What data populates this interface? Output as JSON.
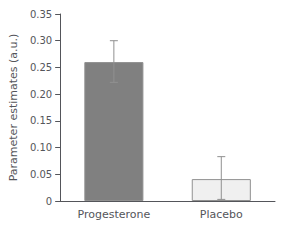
{
  "chart_data": {
    "type": "bar",
    "categories": [
      "Progesterone",
      "Placebo"
    ],
    "values": [
      0.26,
      0.041
    ],
    "error_upper": [
      0.04,
      0.042
    ],
    "error_lower": [
      0.038,
      0.038
    ],
    "colors": [
      "#808080",
      "#f0f0f0"
    ],
    "ylabel": "Parameter estimates (a.u.)",
    "ylim": [
      0,
      0.35
    ],
    "yticks": [
      0,
      0.05,
      {
        "value": 0.1,
        "label": "0.10"
      },
      0.15,
      {
        "value": 0.2,
        "label": "0.20"
      },
      0.25,
      {
        "value": 0.3,
        "label": "0.30"
      },
      0.35
    ],
    "grid": false
  }
}
